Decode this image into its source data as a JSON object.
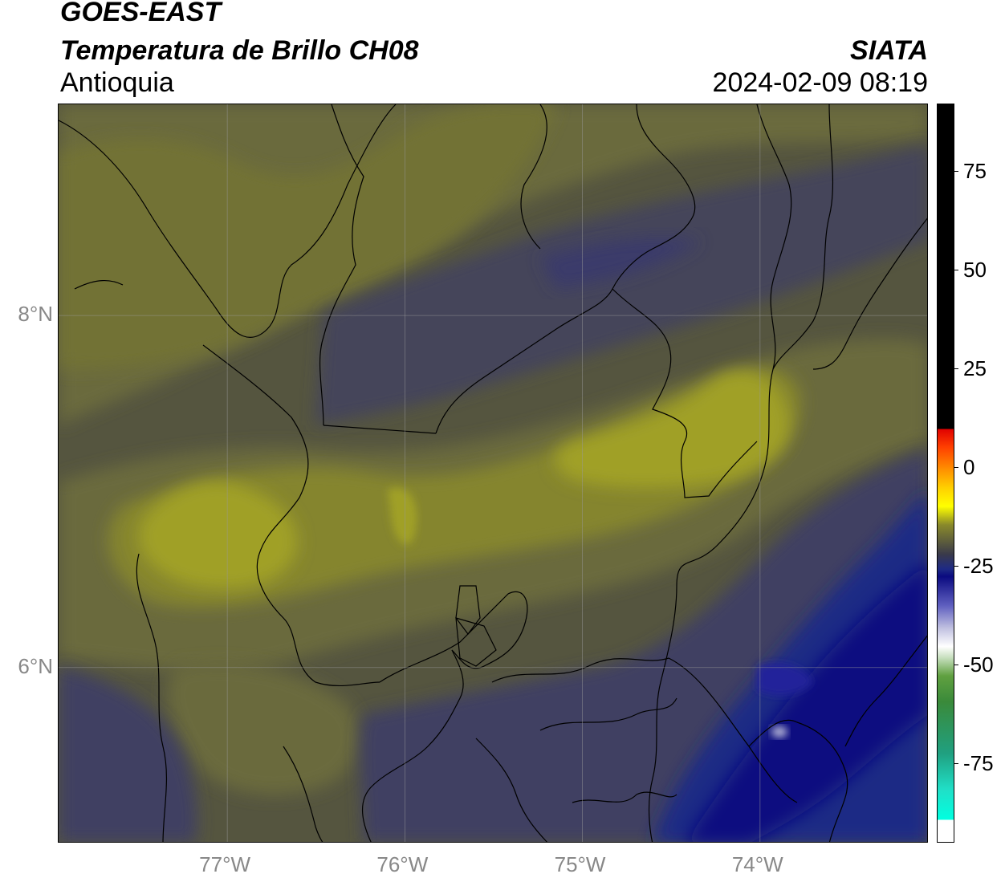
{
  "header": {
    "title": "GOES-EAST",
    "subtitle": "Temperatura de Brillo CH08",
    "region": "Antioquia",
    "agency": "SIATA",
    "datetime": "2024-02-09 08:19"
  },
  "map": {
    "lon_range": [
      -77.95,
      -73.05
    ],
    "lat_range": [
      5.0,
      9.2
    ],
    "lat_ticks": [
      {
        "value": 8,
        "label": "8°N"
      },
      {
        "value": 6,
        "label": "6°N"
      }
    ],
    "lon_ticks": [
      {
        "value": -77,
        "label": "77°W"
      },
      {
        "value": -76,
        "label": "76°W"
      },
      {
        "value": -75,
        "label": "75°W"
      },
      {
        "value": -74,
        "label": "74°W"
      }
    ],
    "gridlines": true,
    "field_colors": {
      "olive_dark": "#55553f",
      "olive": "#6b6b3c",
      "olive_mid": "#85852f",
      "yellow_olive": "#a0a026",
      "gray_blue": "#44445a",
      "slate_blue": "#3a3a6a",
      "navy": "#1e2a85",
      "deep_navy": "#0a0a80"
    }
  },
  "colorbar": {
    "range": [
      -95,
      92
    ],
    "ticks": [
      {
        "value": 75,
        "label": "75"
      },
      {
        "value": 50,
        "label": "50"
      },
      {
        "value": 25,
        "label": "25"
      },
      {
        "value": 0,
        "label": "0"
      },
      {
        "value": -25,
        "label": "-25"
      },
      {
        "value": -50,
        "label": "-50"
      },
      {
        "value": -75,
        "label": "-75"
      }
    ]
  }
}
